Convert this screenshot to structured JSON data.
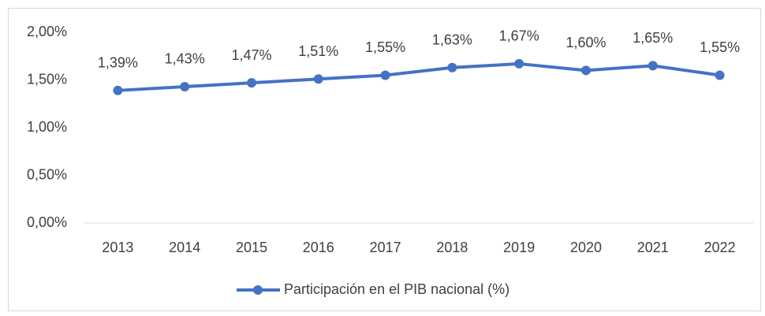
{
  "chart_data": {
    "type": "line",
    "categories": [
      "2013",
      "2014",
      "2015",
      "2016",
      "2017",
      "2018",
      "2019",
      "2020",
      "2021",
      "2022"
    ],
    "series": [
      {
        "name": "Participación en el PIB nacional (%)",
        "color": "#4472c4",
        "values": [
          1.39,
          1.43,
          1.47,
          1.51,
          1.55,
          1.63,
          1.67,
          1.6,
          1.65,
          1.55
        ],
        "value_labels": [
          "1,39%",
          "1,43%",
          "1,47%",
          "1,51%",
          "1,55%",
          "1,63%",
          "1,67%",
          "1,60%",
          "1,65%",
          "1,55%"
        ]
      }
    ],
    "ylim": [
      0,
      2
    ],
    "yticks": [
      {
        "value": 0,
        "label": "0,00%"
      },
      {
        "value": 0.5,
        "label": "0,50%"
      },
      {
        "value": 1,
        "label": "1,00%"
      },
      {
        "value": 1.5,
        "label": "1,50%"
      },
      {
        "value": 2,
        "label": "2,00%"
      }
    ],
    "grid": false,
    "legend": "bottom"
  }
}
